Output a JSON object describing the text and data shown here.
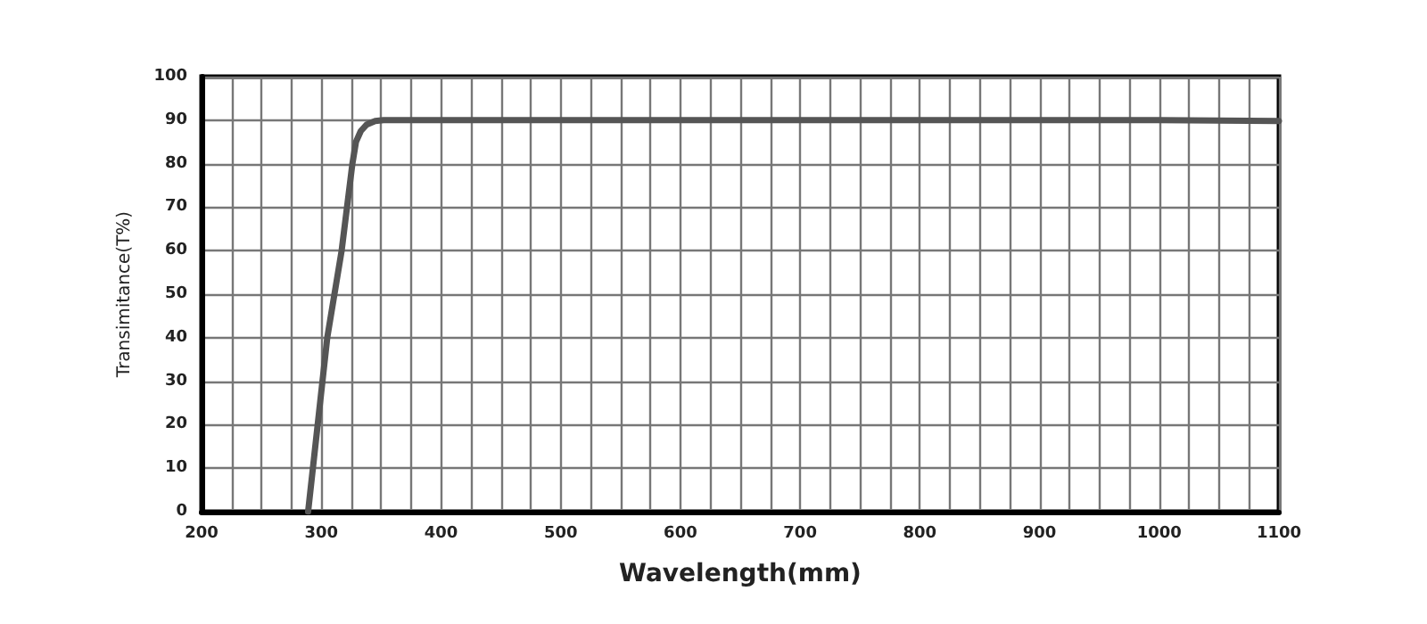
{
  "chart_data": {
    "type": "line",
    "xlabel": "Wavelength(mm)",
    "ylabel": "Transimitance(T%)",
    "series": [
      {
        "color": "#555555",
        "x": [
          289,
          297,
          305,
          317,
          326,
          329,
          333,
          338,
          345,
          352,
          400,
          600,
          800,
          1000,
          1100
        ],
        "values": [
          0,
          20,
          40,
          60,
          80,
          85,
          87.5,
          89,
          89.8,
          90,
          90,
          90,
          90,
          90,
          89.8
        ]
      }
    ],
    "xlim": [
      200,
      1100
    ],
    "xticks": [
      200,
      300,
      400,
      500,
      600,
      700,
      800,
      900,
      1000,
      1100
    ],
    "ylim": [
      0,
      100
    ],
    "yticks": [
      0,
      10,
      20,
      30,
      40,
      50,
      60,
      70,
      80,
      90,
      100
    ],
    "grid": true,
    "marker": "none",
    "line_style": "solid"
  }
}
